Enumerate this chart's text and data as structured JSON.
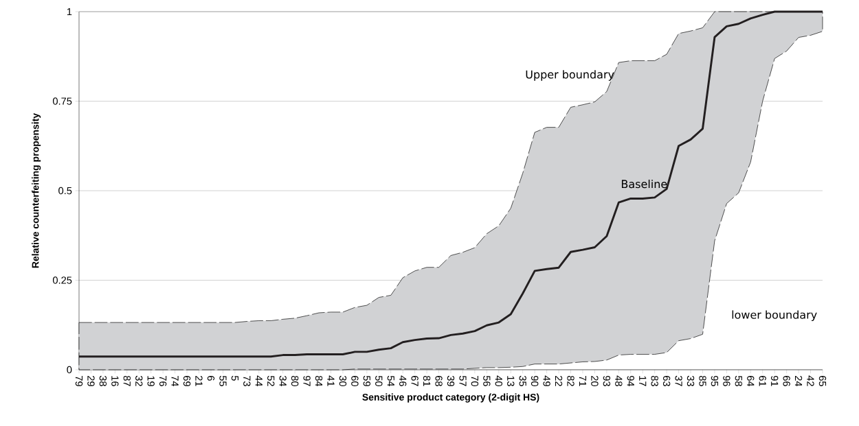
{
  "chart_data": {
    "type": "line",
    "xlabel": "Sensitive product category (2-digit HS)",
    "ylabel": "Relative counterfeiting propensity",
    "categories": [
      "79",
      "29",
      "38",
      "16",
      "87",
      "32",
      "19",
      "76",
      "74",
      "69",
      "21",
      "6",
      "55",
      "5",
      "73",
      "44",
      "52",
      "34",
      "80",
      "97",
      "84",
      "41",
      "30",
      "60",
      "59",
      "50",
      "54",
      "46",
      "67",
      "81",
      "68",
      "39",
      "57",
      "70",
      "56",
      "40",
      "13",
      "35",
      "90",
      "49",
      "22",
      "82",
      "71",
      "20",
      "93",
      "48",
      "94",
      "17",
      "83",
      "63",
      "37",
      "33",
      "85",
      "95",
      "96",
      "58",
      "64",
      "61",
      "91",
      "66",
      "24",
      "42",
      "65"
    ],
    "series": [
      {
        "color": "#231f20",
        "values": [
          0.037,
          0.037,
          0.037,
          0.037,
          0.037,
          0.037,
          0.037,
          0.037,
          0.037,
          0.037,
          0.037,
          0.037,
          0.037,
          0.037,
          0.037,
          0.037,
          0.037,
          0.041,
          0.041,
          0.043,
          0.043,
          0.043,
          0.043,
          0.05,
          0.05,
          0.056,
          0.06,
          0.077,
          0.083,
          0.087,
          0.088,
          0.097,
          0.101,
          0.108,
          0.124,
          0.132,
          0.155,
          0.213,
          0.276,
          0.281,
          0.285,
          0.329,
          0.335,
          0.342,
          0.373,
          0.467,
          0.478,
          0.478,
          0.481,
          0.505,
          0.625,
          0.643,
          0.673,
          0.929,
          0.959,
          0.966,
          0.981,
          0.991,
          1,
          1,
          1,
          1,
          1
        ],
        "upper": [
          0.132,
          0.132,
          0.132,
          0.132,
          0.132,
          0.132,
          0.132,
          0.132,
          0.132,
          0.132,
          0.132,
          0.132,
          0.132,
          0.132,
          0.135,
          0.137,
          0.137,
          0.141,
          0.144,
          0.151,
          0.159,
          0.161,
          0.161,
          0.174,
          0.18,
          0.202,
          0.208,
          0.257,
          0.276,
          0.286,
          0.286,
          0.319,
          0.328,
          0.341,
          0.38,
          0.402,
          0.451,
          0.549,
          0.663,
          0.677,
          0.677,
          0.733,
          0.74,
          0.748,
          0.777,
          0.858,
          0.863,
          0.863,
          0.863,
          0.881,
          0.939,
          0.946,
          0.955,
          1,
          1,
          1,
          1,
          1,
          1,
          1,
          1,
          1,
          1
        ],
        "lower": [
          0,
          0,
          0,
          0,
          0,
          0,
          0,
          0,
          0,
          0,
          0,
          0,
          0,
          0,
          0,
          0,
          0,
          0,
          0,
          0,
          0,
          0,
          0,
          0.002,
          0.002,
          0.002,
          0.002,
          0.002,
          0.002,
          0.002,
          0.002,
          0.002,
          0.002,
          0.004,
          0.006,
          0.006,
          0.007,
          0.009,
          0.016,
          0.016,
          0.016,
          0.019,
          0.022,
          0.023,
          0.027,
          0.041,
          0.043,
          0.043,
          0.043,
          0.048,
          0.081,
          0.087,
          0.099,
          0.36,
          0.464,
          0.494,
          0.58,
          0.75,
          0.869,
          0.89,
          0.928,
          0.934,
          0.945
        ]
      }
    ],
    "annotations": [
      "Upper boundary",
      "Baseline",
      "lower boundary"
    ],
    "ylim": [
      0,
      1
    ],
    "yticks": [
      0,
      {
        "value": 0.25,
        "label": "0.25"
      },
      {
        "value": 0.5,
        "label": "0.5"
      },
      {
        "value": 0.75,
        "label": "0.75"
      },
      1
    ],
    "grid": "y",
    "marker": "none",
    "line_style": "solid"
  }
}
